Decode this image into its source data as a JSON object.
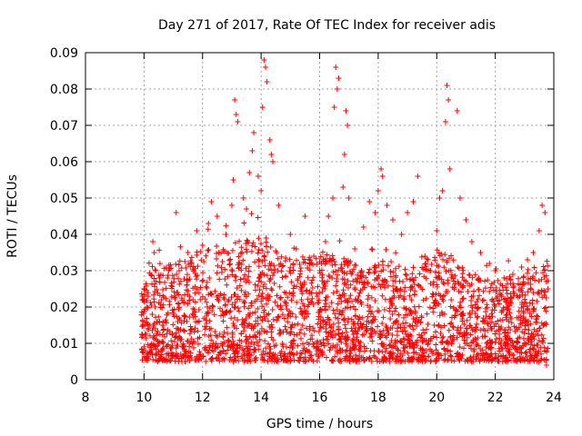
{
  "chart_data": {
    "type": "scatter",
    "title": "Day 271 of 2017, Rate Of TEC Index for receiver adis",
    "xlabel": "GPS time / hours",
    "ylabel": "ROTI / TECUs",
    "xlim": [
      8,
      24
    ],
    "ylim": [
      0,
      0.09
    ],
    "xticks": [
      "8",
      "10",
      "12",
      "14",
      "16",
      "18",
      "20",
      "22",
      "24"
    ],
    "yticks": [
      "0",
      "0.01",
      "0.02",
      "0.03",
      "0.04",
      "0.05",
      "0.06",
      "0.07",
      "0.08",
      "0.09"
    ],
    "grid": true,
    "marker": "plus",
    "color": "#ff0000",
    "data_range_x": [
      9.9,
      23.8
    ],
    "series": [
      {
        "name": "ROTI",
        "points": [
          [
            9.95,
            0.012
          ],
          [
            10.0,
            0.025
          ],
          [
            10.05,
            0.008
          ],
          [
            10.1,
            0.02
          ],
          [
            10.2,
            0.015
          ],
          [
            10.3,
            0.038
          ],
          [
            10.35,
            0.035
          ],
          [
            10.4,
            0.03
          ],
          [
            10.5,
            0.01
          ],
          [
            10.6,
            0.022
          ],
          [
            10.8,
            0.028
          ],
          [
            11.0,
            0.018
          ],
          [
            11.1,
            0.046
          ],
          [
            11.2,
            0.03
          ],
          [
            11.5,
            0.035
          ],
          [
            11.8,
            0.041
          ],
          [
            12.0,
            0.037
          ],
          [
            12.2,
            0.043
          ],
          [
            12.3,
            0.049
          ],
          [
            12.5,
            0.045
          ],
          [
            12.8,
            0.04
          ],
          [
            13.0,
            0.048
          ],
          [
            13.05,
            0.055
          ],
          [
            13.1,
            0.077
          ],
          [
            13.15,
            0.073
          ],
          [
            13.2,
            0.071
          ],
          [
            13.4,
            0.05
          ],
          [
            13.5,
            0.047
          ],
          [
            13.6,
            0.057
          ],
          [
            13.7,
            0.063
          ],
          [
            13.75,
            0.068
          ],
          [
            13.9,
            0.056
          ],
          [
            14.0,
            0.052
          ],
          [
            14.05,
            0.075
          ],
          [
            14.1,
            0.088
          ],
          [
            14.15,
            0.086
          ],
          [
            14.2,
            0.082
          ],
          [
            14.3,
            0.066
          ],
          [
            14.35,
            0.062
          ],
          [
            14.4,
            0.06
          ],
          [
            14.6,
            0.048
          ],
          [
            15.0,
            0.04
          ],
          [
            15.2,
            0.036
          ],
          [
            15.5,
            0.045
          ],
          [
            15.8,
            0.034
          ],
          [
            16.0,
            0.03
          ],
          [
            16.2,
            0.038
          ],
          [
            16.3,
            0.045
          ],
          [
            16.45,
            0.05
          ],
          [
            16.5,
            0.075
          ],
          [
            16.55,
            0.086
          ],
          [
            16.6,
            0.08
          ],
          [
            16.65,
            0.083
          ],
          [
            16.8,
            0.053
          ],
          [
            16.85,
            0.062
          ],
          [
            16.9,
            0.074
          ],
          [
            16.95,
            0.07
          ],
          [
            17.0,
            0.05
          ],
          [
            17.2,
            0.036
          ],
          [
            17.5,
            0.042
          ],
          [
            17.7,
            0.049
          ],
          [
            17.9,
            0.046
          ],
          [
            18.0,
            0.052
          ],
          [
            18.1,
            0.058
          ],
          [
            18.15,
            0.056
          ],
          [
            18.3,
            0.048
          ],
          [
            18.5,
            0.044
          ],
          [
            18.8,
            0.04
          ],
          [
            19.0,
            0.046
          ],
          [
            19.2,
            0.049
          ],
          [
            19.35,
            0.056
          ],
          [
            19.6,
            0.034
          ],
          [
            19.8,
            0.03
          ],
          [
            20.0,
            0.041
          ],
          [
            20.1,
            0.05
          ],
          [
            20.2,
            0.052
          ],
          [
            20.3,
            0.071
          ],
          [
            20.35,
            0.081
          ],
          [
            20.4,
            0.077
          ],
          [
            20.45,
            0.058
          ],
          [
            20.7,
            0.074
          ],
          [
            20.8,
            0.05
          ],
          [
            21.0,
            0.044
          ],
          [
            21.2,
            0.038
          ],
          [
            21.5,
            0.035
          ],
          [
            21.8,
            0.032
          ],
          [
            22.0,
            0.03
          ],
          [
            22.3,
            0.028
          ],
          [
            22.6,
            0.029
          ],
          [
            22.9,
            0.031
          ],
          [
            23.1,
            0.033
          ],
          [
            23.3,
            0.035
          ],
          [
            23.5,
            0.041
          ],
          [
            23.6,
            0.048
          ],
          [
            23.7,
            0.046
          ],
          [
            23.75,
            0.004
          ],
          [
            23.8,
            0.025
          ]
        ]
      }
    ]
  }
}
